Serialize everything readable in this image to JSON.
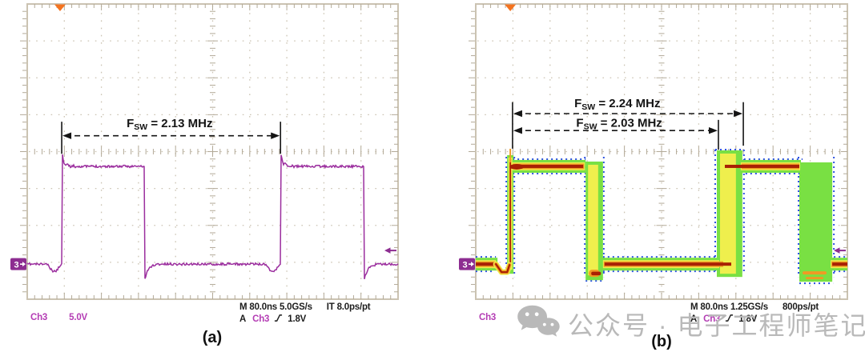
{
  "figure": {
    "type": "oscilloscope-comparison",
    "captions": [
      "(a)",
      "(b)"
    ]
  },
  "colors": {
    "graticule": "#cbc3b2",
    "graticule_tick": "#b3aa98",
    "trace_purple": "#9b2e9e",
    "readout_magenta": "#b43cb4",
    "trigger_orange": "#f4731f",
    "marker_purple": "#8d2d91",
    "annotation_black": "#141414",
    "persist_blue": "#2d52e2",
    "persist_green": "#79e043",
    "persist_yellow": "#efef4d",
    "persist_orange": "#f09a24",
    "persist_red": "#a82104",
    "watermark_gray": "#b9b9b9"
  },
  "watermark": {
    "icon": "wechat-icon",
    "text": "公众号 · 电子工程师笔记"
  },
  "chart_data": [
    {
      "type": "line",
      "panel": "a",
      "render": "single_trace",
      "description": "Switching-node square wave, single acquisition",
      "channel": {
        "number": "3",
        "label": "Ch3",
        "scale": "5.0V"
      },
      "x_axis": {
        "divisions": 10,
        "label": "time",
        "time_per_div": "80.0 ns"
      },
      "y_axis": {
        "divisions": 8,
        "label": "voltage",
        "volts_per_div": "5.0 V"
      },
      "measured_frequency_mhz": [
        2.13
      ],
      "levels_div": {
        "low": 7.05,
        "high": 4.4
      },
      "edges_div": {
        "rise": [
          0.93,
          6.83
        ],
        "fall": [
          3.17,
          9.09
        ]
      },
      "trigger_x_div": 0.885,
      "trigger_arrow_y_div": 6.68,
      "annotations": [
        {
          "f": "F",
          "sub": "SW",
          "rest": " = 2.13 MHz",
          "x1_div": 0.93,
          "x2_div": 6.83,
          "arrow_y_div": 3.57,
          "text_x_div": 3.84,
          "text_y_div": 3.34,
          "bars": [
            {
              "x": 0.93,
              "y1": 3.19,
              "y2": 4.06
            },
            {
              "x": 6.83,
              "y1": 3.19,
              "y2": 4.06
            }
          ]
        }
      ],
      "readout": {
        "channel_label": "Ch3",
        "channel_scale": "5.0V",
        "timebase": "M 80.0ns 5.0GS/s",
        "resolution": "IT 8.0ps/pt",
        "trigger_prefix": "A",
        "trigger_source": "Ch3",
        "trigger_slope": "rising-edge",
        "trigger_level": "1.8V"
      },
      "caption": "(a)"
    },
    {
      "type": "line",
      "panel": "b",
      "render": "persistence",
      "description": "Switching-node square wave with frequency dithering, persistence display",
      "channel": {
        "number": "3",
        "label": "Ch3",
        "scale": "5.0V"
      },
      "x_axis": {
        "divisions": 10,
        "label": "time",
        "time_per_div": "80.0 ns"
      },
      "y_axis": {
        "divisions": 8,
        "label": "voltage",
        "volts_per_div": "5.0 V"
      },
      "measured_frequency_mhz": [
        2.24,
        2.03
      ],
      "levels_div": {
        "low": 7.05,
        "high": 4.4
      },
      "edges_div": {
        "rise": [
          [
            0.93,
            0.93
          ],
          [
            6.53,
            7.13
          ]
        ],
        "fall": [
          [
            3.0,
            3.38
          ],
          [
            8.75,
            9.55
          ]
        ]
      },
      "trigger_x_div": 0.93,
      "trigger_arrow_y_div": 6.68,
      "annotations": [
        {
          "f": "F",
          "sub": "SW",
          "rest": " = 2.24 MHz",
          "x1_div": 0.99,
          "x2_div": 7.2,
          "arrow_y_div": 2.97,
          "text_x_div": 3.81,
          "text_y_div": 2.8,
          "bars": [
            {
              "x": 0.99,
              "y1": 2.66,
              "y2": 3.92
            },
            {
              "x": 7.2,
              "y1": 2.66,
              "y2": 3.84
            }
          ]
        },
        {
          "f": "F",
          "sub": "SW",
          "rest": " = 2.03 MHz",
          "x1_div": 0.99,
          "x2_div": 6.53,
          "arrow_y_div": 3.43,
          "text_x_div": 3.86,
          "text_y_div": 3.33,
          "bars": [
            {
              "x": 6.53,
              "y1": 3.14,
              "y2": 3.95
            }
          ]
        }
      ],
      "readout": {
        "channel_label": "Ch3",
        "channel_scale": "5.0V",
        "timebase": "M 80.0ns 1.25GS/s",
        "resolution": "800ps/pt",
        "trigger_prefix": "A",
        "trigger_source": "Ch3",
        "trigger_slope": "rising-edge",
        "trigger_level": "1.8V"
      },
      "caption": "(b)"
    }
  ]
}
